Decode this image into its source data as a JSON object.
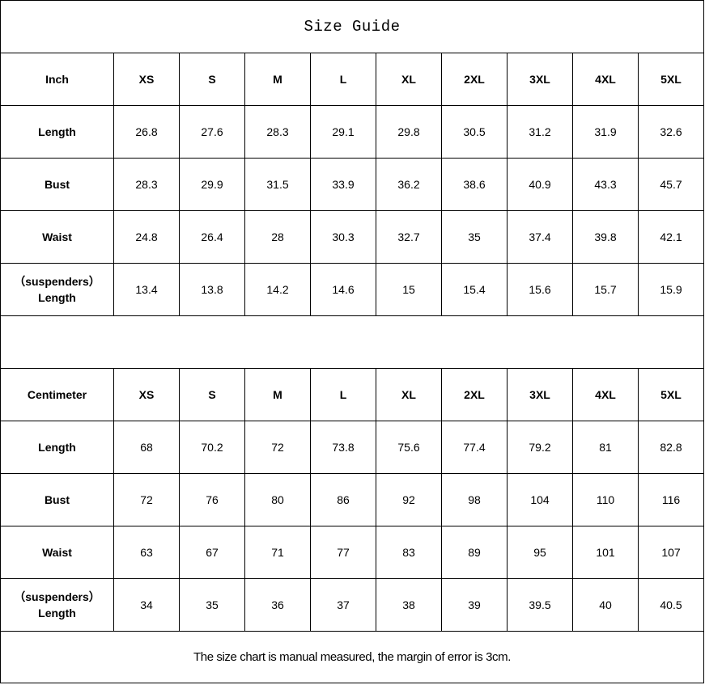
{
  "title": "Size Guide",
  "sizes": [
    "XS",
    "S",
    "M",
    "L",
    "XL",
    "2XL",
    "3XL",
    "4XL",
    "5XL"
  ],
  "tables": [
    {
      "unit": "Inch",
      "rows": [
        {
          "label": "Length",
          "values": [
            "26.8",
            "27.6",
            "28.3",
            "29.1",
            "29.8",
            "30.5",
            "31.2",
            "31.9",
            "32.6"
          ]
        },
        {
          "label": "Bust",
          "values": [
            "28.3",
            "29.9",
            "31.5",
            "33.9",
            "36.2",
            "38.6",
            "40.9",
            "43.3",
            "45.7"
          ]
        },
        {
          "label": "Waist",
          "values": [
            "24.8",
            "26.4",
            "28",
            "30.3",
            "32.7",
            "35",
            "37.4",
            "39.8",
            "42.1"
          ]
        },
        {
          "label": "（suspenders）\nLength",
          "values": [
            "13.4",
            "13.8",
            "14.2",
            "14.6",
            "15",
            "15.4",
            "15.6",
            "15.7",
            "15.9"
          ]
        }
      ]
    },
    {
      "unit": "Centimeter",
      "rows": [
        {
          "label": "Length",
          "values": [
            "68",
            "70.2",
            "72",
            "73.8",
            "75.6",
            "77.4",
            "79.2",
            "81",
            "82.8"
          ]
        },
        {
          "label": "Bust",
          "values": [
            "72",
            "76",
            "80",
            "86",
            "92",
            "98",
            "104",
            "110",
            "116"
          ]
        },
        {
          "label": "Waist",
          "values": [
            "63",
            "67",
            "71",
            "77",
            "83",
            "89",
            "95",
            "101",
            "107"
          ]
        },
        {
          "label": "（suspenders）\nLength",
          "values": [
            "34",
            "35",
            "36",
            "37",
            "38",
            "39",
            "39.5",
            "40",
            "40.5"
          ]
        }
      ]
    }
  ],
  "footer": "The size chart is manual measured, the margin of error is 3cm."
}
